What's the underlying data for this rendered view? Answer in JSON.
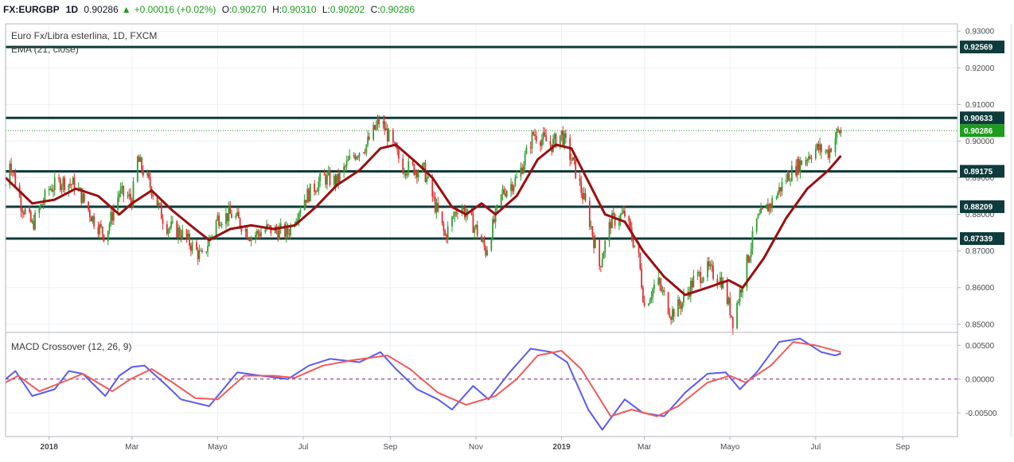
{
  "header": {
    "symbol": "FX:EURGBP",
    "interval": "1D",
    "last": "0.90286",
    "change": "+0.00016 (+0.02%)",
    "open_label": "O:",
    "open": "0.90270",
    "high_label": "H:",
    "high": "0.90310",
    "low_label": "L:",
    "low": "0.90202",
    "close_label": "C:",
    "close": "0.90286"
  },
  "chart_data": [
    {
      "type": "candlestick",
      "title": "Euro Fx/Libra esterlina, 1D, FXCM",
      "indicator_label": "EMA (21, close)",
      "ylim": [
        0.848,
        0.932
      ],
      "y_ticks": [
        "0.93000",
        "0.92000",
        "0.91000",
        "0.90000",
        "0.89000",
        "0.88000",
        "0.87000",
        "0.86000",
        "0.85000"
      ],
      "x_labels": [
        {
          "date": "2018-01-01",
          "label": "2018",
          "bold": true
        },
        {
          "date": "2018-03-01",
          "label": "Mar",
          "bold": false
        },
        {
          "date": "2018-05-01",
          "label": "Mayo",
          "bold": false
        },
        {
          "date": "2018-07-01",
          "label": "Jul",
          "bold": false
        },
        {
          "date": "2018-09-01",
          "label": "Sep",
          "bold": false
        },
        {
          "date": "2018-11-01",
          "label": "Nov",
          "bold": false
        },
        {
          "date": "2019-01-01",
          "label": "2019",
          "bold": true
        },
        {
          "date": "2019-03-01",
          "label": "Mar",
          "bold": false
        },
        {
          "date": "2019-05-01",
          "label": "Mayo",
          "bold": false
        },
        {
          "date": "2019-07-01",
          "label": "Jul",
          "bold": false
        },
        {
          "date": "2019-09-01",
          "label": "Sep",
          "bold": false
        }
      ],
      "horizontal_levels": [
        {
          "value": 0.92569,
          "label": "0.92569"
        },
        {
          "value": 0.90633,
          "label": "0.90633"
        },
        {
          "value": 0.89175,
          "label": "0.89175"
        },
        {
          "value": 0.88209,
          "label": "0.88209"
        },
        {
          "value": 0.87339,
          "label": "0.87339"
        }
      ],
      "last_price": {
        "value": 0.90286,
        "label": "0.90286",
        "color": "#1e9c1e"
      },
      "price_path": [
        {
          "date": "2017-12-01",
          "close": 0.888
        },
        {
          "date": "2017-12-04",
          "close": 0.895
        },
        {
          "date": "2017-12-12",
          "close": 0.883
        },
        {
          "date": "2017-12-20",
          "close": 0.877
        },
        {
          "date": "2018-01-01",
          "close": 0.887
        },
        {
          "date": "2018-01-10",
          "close": 0.889
        },
        {
          "date": "2018-01-20",
          "close": 0.888
        },
        {
          "date": "2018-02-01",
          "close": 0.879
        },
        {
          "date": "2018-02-10",
          "close": 0.874
        },
        {
          "date": "2018-02-20",
          "close": 0.886
        },
        {
          "date": "2018-03-01",
          "close": 0.884
        },
        {
          "date": "2018-03-05",
          "close": 0.895
        },
        {
          "date": "2018-03-15",
          "close": 0.887
        },
        {
          "date": "2018-03-25",
          "close": 0.877
        },
        {
          "date": "2018-04-05",
          "close": 0.875
        },
        {
          "date": "2018-04-20",
          "close": 0.868
        },
        {
          "date": "2018-05-01",
          "close": 0.879
        },
        {
          "date": "2018-05-12",
          "close": 0.88
        },
        {
          "date": "2018-05-25",
          "close": 0.874
        },
        {
          "date": "2018-06-05",
          "close": 0.876
        },
        {
          "date": "2018-06-20",
          "close": 0.875
        },
        {
          "date": "2018-07-01",
          "close": 0.884
        },
        {
          "date": "2018-07-15",
          "close": 0.89
        },
        {
          "date": "2018-07-25",
          "close": 0.889
        },
        {
          "date": "2018-08-05",
          "close": 0.896
        },
        {
          "date": "2018-08-15",
          "close": 0.899
        },
        {
          "date": "2018-08-25",
          "close": 0.906
        },
        {
          "date": "2018-09-01",
          "close": 0.9
        },
        {
          "date": "2018-09-10",
          "close": 0.893
        },
        {
          "date": "2018-09-25",
          "close": 0.892
        },
        {
          "date": "2018-10-05",
          "close": 0.88
        },
        {
          "date": "2018-10-10",
          "close": 0.874
        },
        {
          "date": "2018-10-20",
          "close": 0.883
        },
        {
          "date": "2018-11-01",
          "close": 0.876
        },
        {
          "date": "2018-11-08",
          "close": 0.87
        },
        {
          "date": "2018-11-20",
          "close": 0.886
        },
        {
          "date": "2018-12-01",
          "close": 0.89
        },
        {
          "date": "2018-12-12",
          "close": 0.902
        },
        {
          "date": "2018-12-25",
          "close": 0.899
        },
        {
          "date": "2019-01-01",
          "close": 0.902
        },
        {
          "date": "2019-01-10",
          "close": 0.893
        },
        {
          "date": "2019-01-20",
          "close": 0.88
        },
        {
          "date": "2019-01-28",
          "close": 0.866
        },
        {
          "date": "2019-02-05",
          "close": 0.878
        },
        {
          "date": "2019-02-15",
          "close": 0.88
        },
        {
          "date": "2019-02-25",
          "close": 0.868
        },
        {
          "date": "2019-03-01",
          "close": 0.855
        },
        {
          "date": "2019-03-10",
          "close": 0.862
        },
        {
          "date": "2019-03-20",
          "close": 0.853
        },
        {
          "date": "2019-03-28",
          "close": 0.856
        },
        {
          "date": "2019-04-05",
          "close": 0.862
        },
        {
          "date": "2019-04-15",
          "close": 0.865
        },
        {
          "date": "2019-04-25",
          "close": 0.862
        },
        {
          "date": "2019-05-01",
          "close": 0.854
        },
        {
          "date": "2019-05-03",
          "close": 0.851
        },
        {
          "date": "2019-05-10",
          "close": 0.862
        },
        {
          "date": "2019-05-20",
          "close": 0.878
        },
        {
          "date": "2019-06-01",
          "close": 0.884
        },
        {
          "date": "2019-06-10",
          "close": 0.89
        },
        {
          "date": "2019-06-20",
          "close": 0.894
        },
        {
          "date": "2019-07-01",
          "close": 0.898
        },
        {
          "date": "2019-07-10",
          "close": 0.897
        },
        {
          "date": "2019-07-16",
          "close": 0.902
        },
        {
          "date": "2019-07-19",
          "close": 0.90286
        }
      ],
      "ema_path": [
        {
          "date": "2017-12-01",
          "value": 0.89
        },
        {
          "date": "2017-12-20",
          "value": 0.883
        },
        {
          "date": "2018-01-05",
          "value": 0.884
        },
        {
          "date": "2018-01-20",
          "value": 0.887
        },
        {
          "date": "2018-02-05",
          "value": 0.885
        },
        {
          "date": "2018-02-20",
          "value": 0.88
        },
        {
          "date": "2018-03-01",
          "value": 0.883
        },
        {
          "date": "2018-03-15",
          "value": 0.8865
        },
        {
          "date": "2018-03-30",
          "value": 0.881
        },
        {
          "date": "2018-04-15",
          "value": 0.876
        },
        {
          "date": "2018-04-25",
          "value": 0.873
        },
        {
          "date": "2018-05-10",
          "value": 0.876
        },
        {
          "date": "2018-05-25",
          "value": 0.877
        },
        {
          "date": "2018-06-10",
          "value": 0.876
        },
        {
          "date": "2018-06-25",
          "value": 0.877
        },
        {
          "date": "2018-07-10",
          "value": 0.882
        },
        {
          "date": "2018-07-25",
          "value": 0.888
        },
        {
          "date": "2018-08-10",
          "value": 0.892
        },
        {
          "date": "2018-08-25",
          "value": 0.898
        },
        {
          "date": "2018-09-05",
          "value": 0.899
        },
        {
          "date": "2018-09-20",
          "value": 0.894
        },
        {
          "date": "2018-10-01",
          "value": 0.89
        },
        {
          "date": "2018-10-15",
          "value": 0.882
        },
        {
          "date": "2018-10-25",
          "value": 0.88
        },
        {
          "date": "2018-11-05",
          "value": 0.883
        },
        {
          "date": "2018-11-15",
          "value": 0.88
        },
        {
          "date": "2018-11-30",
          "value": 0.885
        },
        {
          "date": "2018-12-15",
          "value": 0.895
        },
        {
          "date": "2018-12-28",
          "value": 0.899
        },
        {
          "date": "2019-01-08",
          "value": 0.898
        },
        {
          "date": "2019-01-20",
          "value": 0.889
        },
        {
          "date": "2019-02-01",
          "value": 0.88
        },
        {
          "date": "2019-02-15",
          "value": 0.878
        },
        {
          "date": "2019-02-28",
          "value": 0.87
        },
        {
          "date": "2019-03-15",
          "value": 0.863
        },
        {
          "date": "2019-03-30",
          "value": 0.858
        },
        {
          "date": "2019-04-15",
          "value": 0.86
        },
        {
          "date": "2019-04-30",
          "value": 0.862
        },
        {
          "date": "2019-05-10",
          "value": 0.86
        },
        {
          "date": "2019-05-25",
          "value": 0.868
        },
        {
          "date": "2019-06-10",
          "value": 0.879
        },
        {
          "date": "2019-06-25",
          "value": 0.887
        },
        {
          "date": "2019-07-10",
          "value": 0.892
        },
        {
          "date": "2019-07-19",
          "value": 0.896
        }
      ],
      "colors": {
        "up": "#26a69a",
        "down": "#ef5350",
        "up_body": "#2e9e2e",
        "down_body": "#e03030",
        "ema": "#9a0f0f",
        "level": "#0e3b3b"
      }
    },
    {
      "type": "line",
      "title": "MACD Crossover (12, 26, 9)",
      "ylim": [
        -0.0085,
        0.0068
      ],
      "y_ticks": [
        "0.00500",
        "0.00000",
        "-0.00500"
      ],
      "series": [
        {
          "color": "#5b5bef",
          "points": [
            {
              "date": "2017-12-01",
              "value": 0.0
            },
            {
              "date": "2017-12-08",
              "value": 0.0012
            },
            {
              "date": "2017-12-20",
              "value": -0.0025
            },
            {
              "date": "2018-01-05",
              "value": -0.0015
            },
            {
              "date": "2018-01-15",
              "value": 0.0012
            },
            {
              "date": "2018-01-25",
              "value": 0.0008
            },
            {
              "date": "2018-02-10",
              "value": -0.0025
            },
            {
              "date": "2018-02-20",
              "value": 0.0005
            },
            {
              "date": "2018-03-01",
              "value": 0.0018
            },
            {
              "date": "2018-03-10",
              "value": 0.002
            },
            {
              "date": "2018-03-25",
              "value": -0.0008
            },
            {
              "date": "2018-04-05",
              "value": -0.003
            },
            {
              "date": "2018-04-25",
              "value": -0.004
            },
            {
              "date": "2018-05-15",
              "value": 0.001
            },
            {
              "date": "2018-06-01",
              "value": 0.0005
            },
            {
              "date": "2018-06-20",
              "value": 0.0
            },
            {
              "date": "2018-07-05",
              "value": 0.002
            },
            {
              "date": "2018-07-20",
              "value": 0.003
            },
            {
              "date": "2018-08-10",
              "value": 0.0025
            },
            {
              "date": "2018-08-25",
              "value": 0.004
            },
            {
              "date": "2018-09-05",
              "value": 0.0015
            },
            {
              "date": "2018-09-20",
              "value": -0.0015
            },
            {
              "date": "2018-10-05",
              "value": -0.003
            },
            {
              "date": "2018-10-15",
              "value": -0.0045
            },
            {
              "date": "2018-10-30",
              "value": -0.001
            },
            {
              "date": "2018-11-10",
              "value": -0.003
            },
            {
              "date": "2018-11-25",
              "value": 0.001
            },
            {
              "date": "2018-12-10",
              "value": 0.0045
            },
            {
              "date": "2018-12-25",
              "value": 0.004
            },
            {
              "date": "2019-01-05",
              "value": 0.0025
            },
            {
              "date": "2019-01-20",
              "value": -0.0045
            },
            {
              "date": "2019-01-30",
              "value": -0.0075
            },
            {
              "date": "2019-02-15",
              "value": -0.003
            },
            {
              "date": "2019-02-28",
              "value": -0.005
            },
            {
              "date": "2019-03-15",
              "value": -0.0055
            },
            {
              "date": "2019-03-30",
              "value": -0.002
            },
            {
              "date": "2019-04-15",
              "value": 0.0008
            },
            {
              "date": "2019-04-28",
              "value": 0.001
            },
            {
              "date": "2019-05-08",
              "value": -0.0015
            },
            {
              "date": "2019-05-20",
              "value": 0.001
            },
            {
              "date": "2019-06-05",
              "value": 0.0055
            },
            {
              "date": "2019-06-20",
              "value": 0.006
            },
            {
              "date": "2019-07-05",
              "value": 0.004
            },
            {
              "date": "2019-07-15",
              "value": 0.0035
            },
            {
              "date": "2019-07-19",
              "value": 0.0038
            }
          ]
        },
        {
          "color": "#f05a5a",
          "points": [
            {
              "date": "2017-12-01",
              "value": -0.0005
            },
            {
              "date": "2017-12-10",
              "value": 0.0005
            },
            {
              "date": "2017-12-25",
              "value": -0.0018
            },
            {
              "date": "2018-01-10",
              "value": -0.0005
            },
            {
              "date": "2018-01-25",
              "value": 0.0008
            },
            {
              "date": "2018-02-15",
              "value": -0.0018
            },
            {
              "date": "2018-02-28",
              "value": 0.0
            },
            {
              "date": "2018-03-15",
              "value": 0.0015
            },
            {
              "date": "2018-03-30",
              "value": -0.0005
            },
            {
              "date": "2018-04-15",
              "value": -0.0028
            },
            {
              "date": "2018-05-01",
              "value": -0.003
            },
            {
              "date": "2018-05-20",
              "value": 0.0005
            },
            {
              "date": "2018-06-10",
              "value": 0.0005
            },
            {
              "date": "2018-06-25",
              "value": 0.0002
            },
            {
              "date": "2018-07-15",
              "value": 0.002
            },
            {
              "date": "2018-08-05",
              "value": 0.0028
            },
            {
              "date": "2018-08-30",
              "value": 0.0035
            },
            {
              "date": "2018-09-15",
              "value": 0.0015
            },
            {
              "date": "2018-10-05",
              "value": -0.002
            },
            {
              "date": "2018-10-25",
              "value": -0.0038
            },
            {
              "date": "2018-11-15",
              "value": -0.0025
            },
            {
              "date": "2018-11-30",
              "value": 0.0
            },
            {
              "date": "2018-12-15",
              "value": 0.0035
            },
            {
              "date": "2019-01-01",
              "value": 0.0042
            },
            {
              "date": "2019-01-15",
              "value": 0.0015
            },
            {
              "date": "2019-02-05",
              "value": -0.0055
            },
            {
              "date": "2019-02-20",
              "value": -0.0045
            },
            {
              "date": "2019-03-10",
              "value": -0.0055
            },
            {
              "date": "2019-03-25",
              "value": -0.004
            },
            {
              "date": "2019-04-15",
              "value": -0.0005
            },
            {
              "date": "2019-05-01",
              "value": 0.0005
            },
            {
              "date": "2019-05-12",
              "value": -0.0005
            },
            {
              "date": "2019-05-30",
              "value": 0.002
            },
            {
              "date": "2019-06-15",
              "value": 0.0055
            },
            {
              "date": "2019-07-01",
              "value": 0.005
            },
            {
              "date": "2019-07-19",
              "value": 0.004
            }
          ]
        }
      ],
      "zero_line": {
        "value": 0,
        "style": "dashed",
        "color": "#7a1f7a"
      }
    }
  ]
}
